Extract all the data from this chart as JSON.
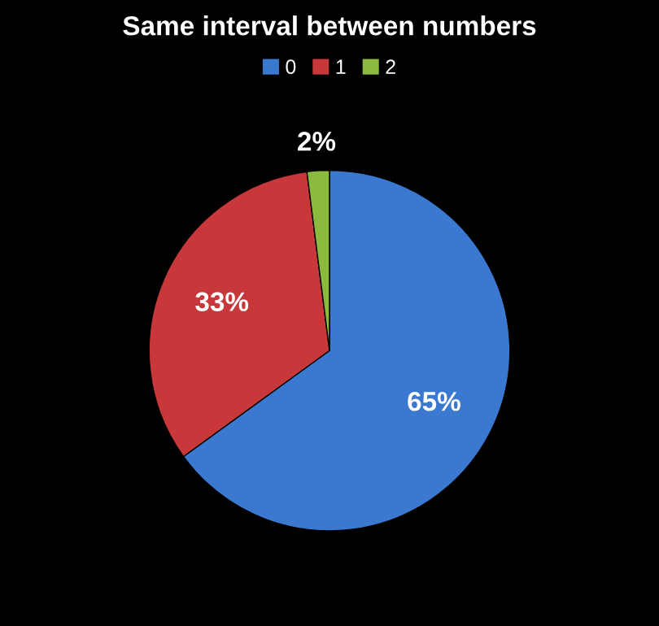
{
  "chart_data": {
    "type": "pie",
    "title": "Same interval between numbers",
    "categories": [
      "0",
      "1",
      "2"
    ],
    "values": [
      65,
      33,
      2
    ],
    "colors": [
      "#3b78d0",
      "#c8383a",
      "#8cba3e"
    ],
    "value_labels": [
      "65%",
      "33%",
      "2%"
    ],
    "legend": "top"
  }
}
